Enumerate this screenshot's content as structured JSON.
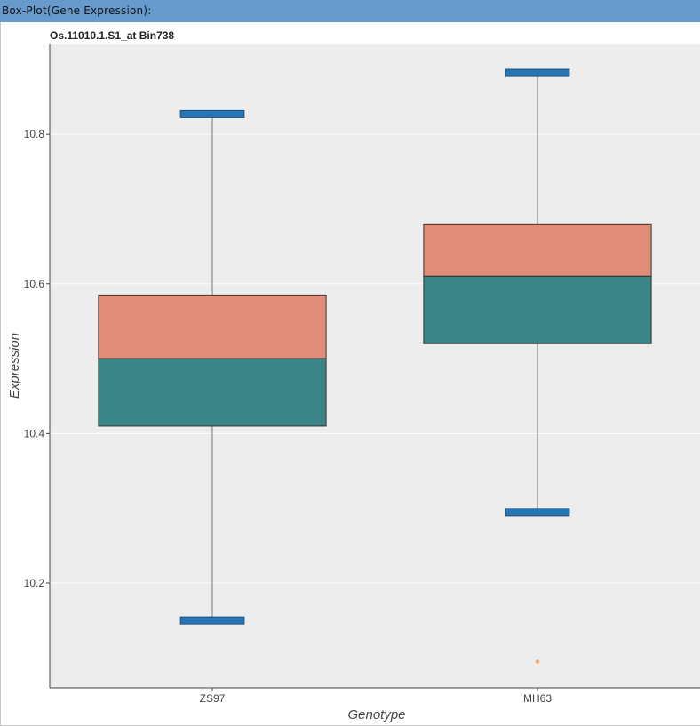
{
  "panel": {
    "title": "Box-Plot(Gene Expression):"
  },
  "chart_data": {
    "type": "box",
    "title": "Os.11010.1.S1_at Bin738",
    "xlabel": "Genotype",
    "ylabel": "Expression",
    "categories": [
      "ZS97",
      "MH63"
    ],
    "ylim": [
      10.06,
      10.92
    ],
    "yticks": [
      10.2,
      10.4,
      10.6,
      10.8
    ],
    "grid": true,
    "boxes": [
      {
        "category": "ZS97",
        "whisker_low": 10.15,
        "q1": 10.41,
        "median": 10.5,
        "q3": 10.585,
        "whisker_high": 10.827,
        "outliers": []
      },
      {
        "category": "MH63",
        "whisker_low": 10.295,
        "q1": 10.52,
        "median": 10.61,
        "q3": 10.68,
        "whisker_high": 10.882,
        "outliers": [
          10.095
        ]
      }
    ],
    "colors": {
      "upper_box": "#e08e79",
      "lower_box": "#3a8686",
      "whisker_cap": "#2676b6",
      "outlier": "#f4a15d",
      "plot_background": "#ededed",
      "gridline": "#ffffff"
    }
  }
}
